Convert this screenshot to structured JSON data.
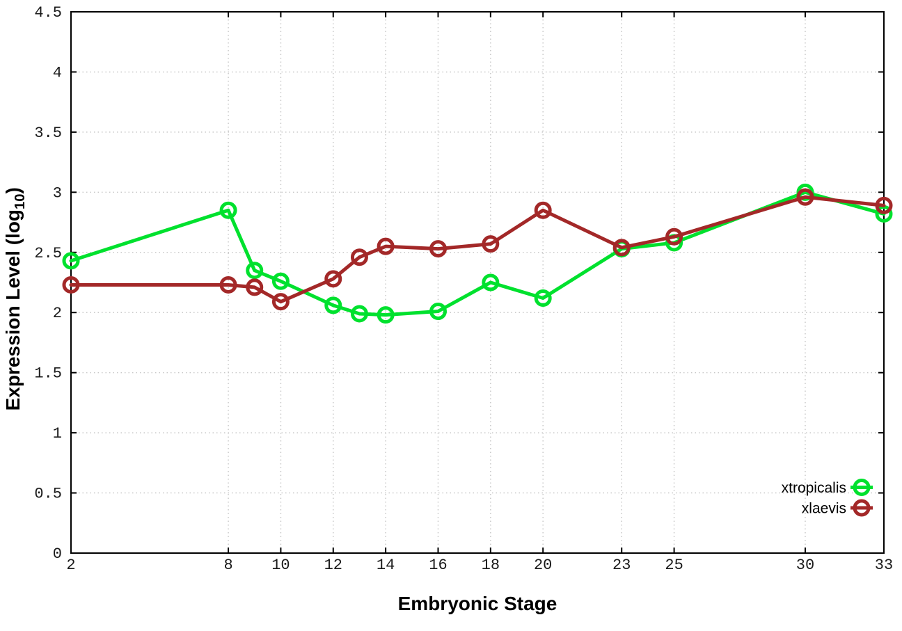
{
  "chart_data": {
    "type": "line",
    "title": "",
    "xlabel": "Embryonic Stage",
    "ylabel": {
      "prefix": "Expression Level (log",
      "sub": "10",
      "suffix": ")"
    },
    "x": [
      2,
      8,
      9,
      10,
      12,
      13,
      14,
      16,
      18,
      20,
      23,
      25,
      30,
      33
    ],
    "series": [
      {
        "name": "xtropicalis",
        "color": "#00e12e",
        "values": [
          2.43,
          2.85,
          2.35,
          2.26,
          2.06,
          1.99,
          1.98,
          2.01,
          2.25,
          2.12,
          2.53,
          2.58,
          3.0,
          2.82
        ]
      },
      {
        "name": "xlaevis",
        "color": "#a32828",
        "values": [
          2.23,
          2.23,
          2.21,
          2.09,
          2.28,
          2.46,
          2.55,
          2.53,
          2.57,
          2.85,
          2.54,
          2.63,
          2.96,
          2.89
        ]
      }
    ],
    "xlim": [
      2,
      33
    ],
    "ylim": [
      0,
      4.5
    ],
    "xticks": [
      2,
      8,
      10,
      12,
      14,
      16,
      18,
      20,
      23,
      25,
      30,
      33
    ],
    "xtick_labels": [
      "2",
      "8",
      "10",
      "12",
      "14",
      "16",
      "18",
      "20",
      "23",
      "25",
      "30",
      "33"
    ],
    "yticks": [
      0,
      0.5,
      1,
      1.5,
      2,
      2.5,
      3,
      3.5,
      4,
      4.5
    ],
    "ytick_labels": [
      "0",
      "0.5",
      "1",
      "1.5",
      "2",
      "2.5",
      "3",
      "3.5",
      "4",
      "4.5"
    ],
    "grid": true,
    "legend_position": "bottom-right",
    "legend_entries": [
      "xtropicalis",
      "xlaevis"
    ],
    "colors": {
      "axis": "#000000",
      "grid": "#c8c8c8",
      "tick_text": "#1a1a1a",
      "legend_text": "#000000"
    }
  }
}
